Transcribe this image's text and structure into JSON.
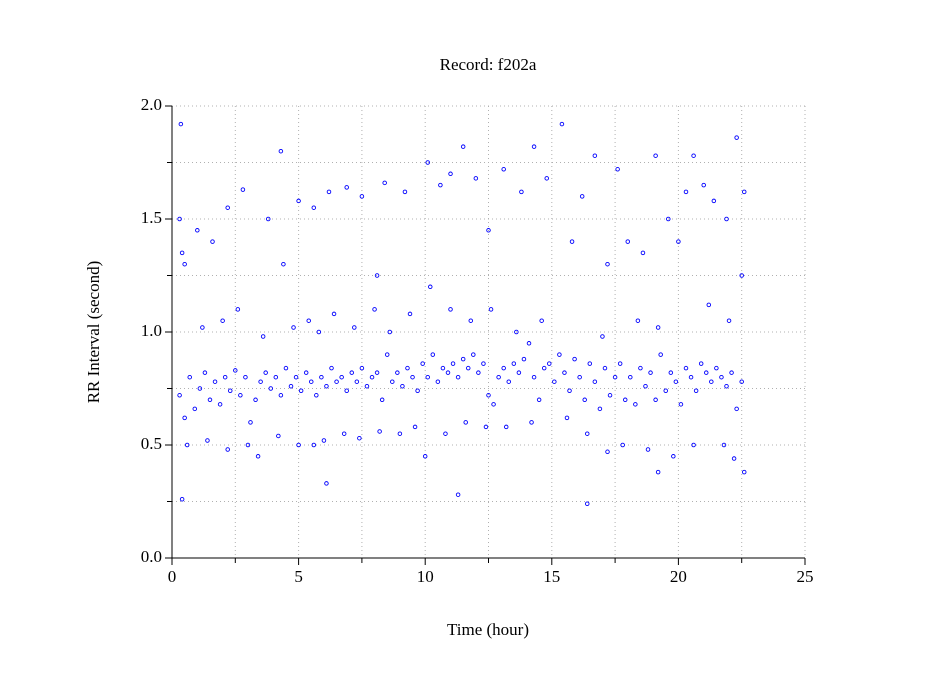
{
  "chart_data": {
    "type": "scatter",
    "title": "Record:  f202a",
    "xlabel": "Time (hour)",
    "ylabel": "RR Interval (second)",
    "xlim": [
      0,
      25
    ],
    "ylim": [
      0,
      2
    ],
    "xticks": [
      0,
      5,
      10,
      15,
      20,
      25
    ],
    "yticks": [
      {
        "value": 0,
        "label": "0.0"
      },
      {
        "value": 0.5,
        "label": "0.5"
      },
      {
        "value": 1,
        "label": "1.0"
      },
      {
        "value": 1.5,
        "label": "1.5"
      },
      {
        "value": 2,
        "label": "2.0"
      }
    ],
    "xminorticks": [
      2.5,
      7.5,
      12.5,
      17.5,
      22.5
    ],
    "yminorticks": [
      0.25,
      0.75,
      1.25,
      1.75
    ],
    "grid": true,
    "series": [
      {
        "name": "RR",
        "color": "#0000ff",
        "x": [
          0.3,
          0.5,
          0.7,
          0.9,
          1.1,
          1.3,
          1.5,
          1.7,
          1.9,
          2.1,
          2.3,
          2.5,
          2.7,
          2.9,
          3.1,
          3.3,
          3.5,
          3.7,
          3.9,
          4.1,
          4.3,
          4.5,
          4.7,
          4.9,
          5.1,
          5.3,
          5.5,
          5.7,
          5.9,
          6.1,
          6.3,
          6.5,
          6.7,
          6.9,
          7.1,
          7.3,
          7.5,
          7.7,
          7.9,
          8.1,
          8.3,
          8.5,
          8.7,
          8.9,
          9.1,
          9.3,
          9.5,
          9.7,
          9.9,
          10.1,
          10.3,
          10.5,
          10.7,
          10.9,
          11.1,
          11.3,
          11.5,
          11.7,
          11.9,
          12.1,
          12.3,
          12.5,
          12.7,
          12.9,
          13.1,
          13.3,
          13.5,
          13.7,
          13.9,
          14.1,
          14.3,
          14.5,
          14.7,
          14.9,
          15.1,
          15.3,
          15.5,
          15.7,
          15.9,
          16.1,
          16.3,
          16.5,
          16.7,
          16.9,
          17.1,
          17.3,
          17.5,
          17.7,
          17.9,
          18.1,
          18.3,
          18.5,
          18.7,
          18.9,
          19.1,
          19.3,
          19.5,
          19.7,
          19.9,
          20.1,
          20.3,
          20.5,
          20.7,
          20.9,
          21.1,
          21.3,
          21.5,
          21.7,
          21.9,
          22.1,
          22.3,
          22.5,
          0.6,
          1.4,
          2.2,
          3.0,
          3.4,
          4.2,
          5.0,
          5.6,
          6.0,
          6.8,
          7.4,
          8.2,
          9.0,
          9.6,
          10.0,
          10.8,
          11.6,
          12.4,
          13.2,
          14.2,
          15.6,
          16.4,
          17.2,
          17.8,
          18.8,
          19.2,
          19.8,
          20.6,
          21.8,
          22.2,
          22.6,
          1.2,
          2.0,
          2.6,
          3.6,
          4.8,
          5.4,
          5.8,
          6.4,
          7.2,
          8.0,
          8.6,
          9.4,
          10.2,
          11.0,
          11.8,
          12.6,
          13.6,
          14.6,
          17.0,
          18.4,
          19.2,
          21.2,
          22.0,
          0.3,
          0.35,
          0.4,
          0.5,
          1.0,
          1.6,
          2.2,
          2.8,
          3.8,
          4.3,
          4.4,
          5.0,
          5.6,
          6.2,
          6.9,
          7.5,
          8.4,
          8.1,
          9.2,
          10.1,
          10.6,
          11.0,
          11.5,
          12.0,
          12.5,
          13.1,
          13.8,
          14.3,
          14.8,
          15.4,
          15.8,
          16.2,
          16.7,
          17.2,
          17.6,
          18.0,
          18.6,
          19.1,
          19.6,
          20.0,
          20.3,
          20.6,
          21.0,
          21.4,
          21.9,
          22.3,
          22.5,
          22.6,
          0.4,
          6.1,
          11.3,
          16.4
        ],
        "values": [
          0.72,
          0.62,
          0.8,
          0.66,
          0.75,
          0.82,
          0.7,
          0.78,
          0.68,
          0.8,
          0.74,
          0.83,
          0.72,
          0.8,
          0.6,
          0.7,
          0.78,
          0.82,
          0.75,
          0.8,
          0.72,
          0.84,
          0.76,
          0.8,
          0.74,
          0.82,
          0.78,
          0.72,
          0.8,
          0.76,
          0.84,
          0.78,
          0.8,
          0.74,
          0.82,
          0.78,
          0.84,
          0.76,
          0.8,
          0.82,
          0.7,
          0.9,
          0.78,
          0.82,
          0.76,
          0.84,
          0.8,
          0.74,
          0.86,
          0.8,
          0.9,
          0.78,
          0.84,
          0.82,
          0.86,
          0.8,
          0.88,
          0.84,
          0.9,
          0.82,
          0.86,
          0.72,
          0.68,
          0.8,
          0.84,
          0.78,
          0.86,
          0.82,
          0.88,
          0.95,
          0.8,
          0.7,
          0.84,
          0.86,
          0.78,
          0.9,
          0.82,
          0.74,
          0.88,
          0.8,
          0.7,
          0.86,
          0.78,
          0.66,
          0.84,
          0.72,
          0.8,
          0.86,
          0.7,
          0.8,
          0.68,
          0.84,
          0.76,
          0.82,
          0.7,
          0.9,
          0.74,
          0.82,
          0.78,
          0.68,
          0.84,
          0.8,
          0.74,
          0.86,
          0.82,
          0.78,
          0.84,
          0.8,
          0.76,
          0.82,
          0.66,
          0.78,
          0.5,
          0.52,
          0.48,
          0.5,
          0.45,
          0.54,
          0.5,
          0.5,
          0.52,
          0.55,
          0.53,
          0.56,
          0.55,
          0.58,
          0.45,
          0.55,
          0.6,
          0.58,
          0.58,
          0.6,
          0.62,
          0.55,
          0.47,
          0.5,
          0.48,
          0.38,
          0.45,
          0.5,
          0.5,
          0.44,
          0.38,
          1.02,
          1.05,
          1.1,
          0.98,
          1.02,
          1.05,
          1.0,
          1.08,
          1.02,
          1.1,
          1.0,
          1.08,
          1.2,
          1.1,
          1.05,
          1.1,
          1.0,
          1.05,
          0.98,
          1.05,
          1.02,
          1.12,
          1.05,
          1.5,
          1.92,
          1.35,
          1.3,
          1.45,
          1.4,
          1.55,
          1.63,
          1.5,
          1.8,
          1.3,
          1.58,
          1.55,
          1.62,
          1.64,
          1.6,
          1.66,
          1.25,
          1.62,
          1.75,
          1.65,
          1.7,
          1.82,
          1.68,
          1.45,
          1.72,
          1.62,
          1.82,
          1.68,
          1.92,
          1.4,
          1.6,
          1.78,
          1.3,
          1.72,
          1.4,
          1.35,
          1.78,
          1.5,
          1.4,
          1.62,
          1.78,
          1.65,
          1.58,
          1.5,
          1.86,
          1.25,
          1.62,
          0.26,
          0.33,
          0.28,
          0.24
        ]
      }
    ]
  }
}
